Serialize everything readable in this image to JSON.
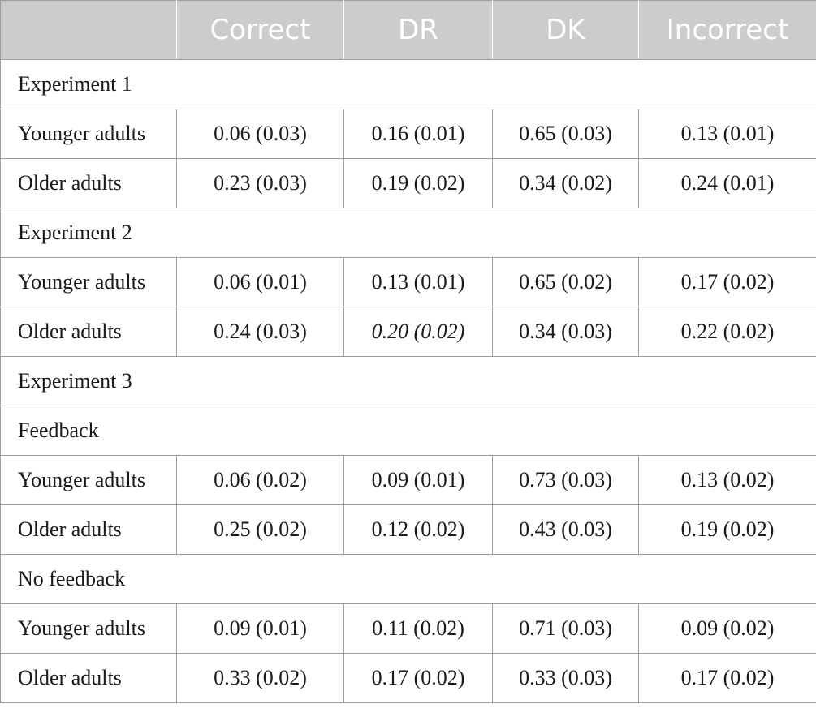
{
  "header": [
    "",
    "Correct",
    "DR",
    "DK",
    "Incorrect"
  ],
  "rows": [
    {
      "type": "section",
      "label": "Experiment 1"
    },
    {
      "type": "data",
      "label": "Younger adults",
      "values": [
        "0.06 (0.03)",
        "0.16 (0.01)",
        "0.65 (0.03)",
        "0.13 (0.01)"
      ]
    },
    {
      "type": "data",
      "label": "Older adults",
      "values": [
        "0.23 (0.03)",
        "0.19 (0.02)",
        "0.34 (0.02)",
        "0.24 (0.01)"
      ]
    },
    {
      "type": "section",
      "label": "Experiment 2"
    },
    {
      "type": "data",
      "label": "Younger adults",
      "values": [
        "0.06 (0.01)",
        "0.13 (0.01)",
        "0.65 (0.02)",
        "0.17 (0.02)"
      ]
    },
    {
      "type": "data",
      "label": "Older adults",
      "values": [
        "0.24 (0.03)",
        "0.20 (0.02)",
        "0.34 (0.03)",
        "0.22 (0.02)"
      ]
    },
    {
      "type": "section",
      "label": "Experiment 3"
    },
    {
      "type": "section",
      "label": "Feedback"
    },
    {
      "type": "data",
      "label": "Younger adults",
      "values": [
        "0.06 (0.02)",
        "0.09 (0.01)",
        "0.73 (0.03)",
        "0.13 (0.02)"
      ]
    },
    {
      "type": "data",
      "label": "Older adults",
      "values": [
        "0.25 (0.02)",
        "0.12 (0.02)",
        "0.43 (0.03)",
        "0.19 (0.02)"
      ]
    },
    {
      "type": "section",
      "label": "No feedback"
    },
    {
      "type": "data",
      "label": "Younger adults",
      "values": [
        "0.09 (0.01)",
        "0.11 (0.02)",
        "0.71 (0.03)",
        "0.09 (0.02)"
      ]
    },
    {
      "type": "data",
      "label": "Older adults",
      "values": [
        "0.33 (0.02)",
        "0.17 (0.02)",
        "0.33 (0.03)",
        "0.17 (0.02)"
      ]
    }
  ],
  "colors": {
    "header_background": "#cccccc",
    "header_text": "#ffffff",
    "border": "#9d9d9d",
    "body_text": "#1a1a1a"
  }
}
